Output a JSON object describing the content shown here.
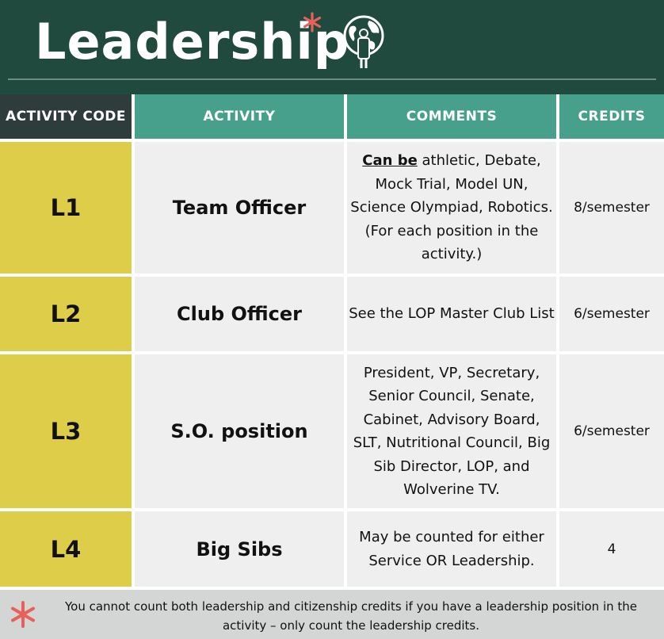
{
  "header": {
    "title": "Leadership",
    "accent_color": "#e8605a",
    "icon": "globe-person-icon"
  },
  "table": {
    "columns": [
      "ACTIVITY CODE",
      "ACTIVITY",
      "COMMENTS",
      "CREDITS"
    ],
    "rows": [
      {
        "code": "L1",
        "activity": "Team Officer",
        "comments_emphasis": "Can be",
        "comments": " athletic, Debate, Mock Trial, Model UN, Science Olympiad, Robotics. (For each position in the activity.)",
        "credits": "8/semester"
      },
      {
        "code": "L2",
        "activity": "Club Officer",
        "comments": "See the LOP Master Club List",
        "credits": "6/semester"
      },
      {
        "code": "L3",
        "activity": "S.O. position",
        "comments": "President, VP, Secretary, Senior Council, Senate, Cabinet, Advisory Board, SLT, Nutritional Council, Big Sib Director, LOP, and Wolverine TV.",
        "credits": "6/semester"
      },
      {
        "code": "L4",
        "activity": "Big Sibs",
        "comments": "May be counted for either Service OR Leadership.",
        "credits": "4"
      }
    ]
  },
  "footer": {
    "note": "You cannot count both leadership and citizenship credits if you have a leadership position in the activity – only count the leadership credits.",
    "icon": "asterisk-icon"
  },
  "colors": {
    "header_bg": "#1f4a3d",
    "code_header_bg": "#2f3c3c",
    "teal_header_bg": "#47a08c",
    "code_cell_bg": "#ddcd48",
    "cell_bg": "#efefef",
    "footer_bg": "#d4d6d5"
  }
}
